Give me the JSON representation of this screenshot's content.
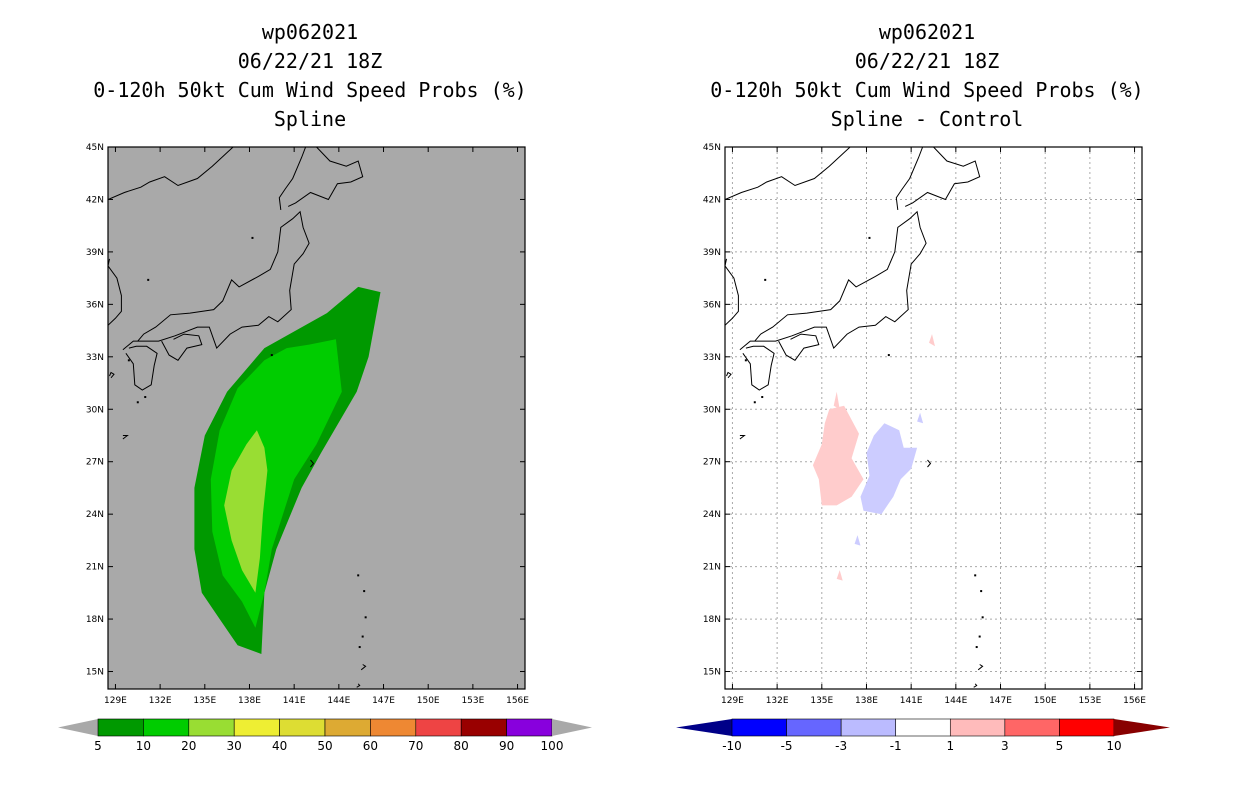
{
  "left_panel": {
    "title_lines": [
      "wp062021",
      "06/22/21 18Z",
      "0-120h 50kt Cum Wind Speed Probs (%)",
      "Spline"
    ]
  },
  "right_panel": {
    "title_lines": [
      "wp062021",
      "06/22/21 18Z",
      "0-120h 50kt Cum Wind Speed Probs (%)",
      "Spline - Control"
    ]
  },
  "chart_data": [
    {
      "type": "heatmap",
      "title": "0-120h 50kt Cum Wind Speed Probs (%) Spline",
      "storm_id": "wp062021",
      "time": "06/22/21 18Z",
      "x_ticks": [
        "129E",
        "132E",
        "135E",
        "138E",
        "141E",
        "144E",
        "147E",
        "150E",
        "153E",
        "156E"
      ],
      "y_ticks": [
        "45N",
        "42N",
        "39N",
        "36N",
        "33N",
        "30N",
        "27N",
        "24N",
        "21N",
        "18N",
        "15N"
      ],
      "xlim": [
        128.5,
        156.5
      ],
      "ylim": [
        14,
        45
      ],
      "grid": false,
      "background_color": "#a9a9a9",
      "colorbar": {
        "levels": [
          "5",
          "10",
          "20",
          "30",
          "40",
          "50",
          "60",
          "70",
          "80",
          "90",
          "100"
        ],
        "colors": [
          "#009900",
          "#00cc00",
          "#99dd33",
          "#eeee33",
          "#dddd33",
          "#ddaa33",
          "#ee8833",
          "#ee4444",
          "#990000",
          "#8800dd"
        ],
        "under_color": "#a9a9a9",
        "over_color": "#a9a9a9"
      },
      "contours": [
        {
          "level": "5-10",
          "color": "#009900",
          "polygon_lonlat": [
            [
              143.2,
              35.5
            ],
            [
              145.3,
              37.0
            ],
            [
              146.8,
              36.7
            ],
            [
              146.0,
              33.0
            ],
            [
              145.2,
              31.0
            ],
            [
              142.8,
              27.5
            ],
            [
              141.5,
              25.5
            ],
            [
              139.8,
              22.0
            ],
            [
              139.0,
              19.5
            ],
            [
              138.8,
              16.0
            ],
            [
              137.2,
              16.5
            ],
            [
              136.0,
              18.0
            ],
            [
              134.8,
              19.5
            ],
            [
              134.3,
              22.0
            ],
            [
              134.3,
              25.5
            ],
            [
              135.0,
              28.5
            ],
            [
              136.5,
              31.0
            ],
            [
              139.0,
              33.5
            ]
          ]
        },
        {
          "level": "10-20",
          "color": "#00cc00",
          "polygon_lonlat": [
            [
              140.5,
              33.5
            ],
            [
              142.0,
              33.7
            ],
            [
              143.8,
              34.0
            ],
            [
              144.2,
              31.0
            ],
            [
              142.5,
              28.0
            ],
            [
              141.0,
              26.0
            ],
            [
              139.5,
              22.0
            ],
            [
              139.0,
              19.5
            ],
            [
              138.4,
              17.5
            ],
            [
              137.5,
              19.0
            ],
            [
              136.2,
              20.5
            ],
            [
              135.5,
              23.0
            ],
            [
              135.4,
              26.0
            ],
            [
              136.0,
              28.8
            ],
            [
              137.2,
              31.2
            ],
            [
              139.0,
              32.8
            ]
          ]
        },
        {
          "level": "20-30",
          "color": "#99dd33",
          "polygon_lonlat": [
            [
              138.5,
              28.8
            ],
            [
              139.0,
              27.8
            ],
            [
              139.2,
              26.5
            ],
            [
              138.9,
              24.0
            ],
            [
              138.7,
              21.5
            ],
            [
              138.4,
              19.5
            ],
            [
              137.5,
              20.8
            ],
            [
              136.8,
              22.5
            ],
            [
              136.3,
              24.5
            ],
            [
              136.8,
              26.5
            ],
            [
              137.8,
              28.0
            ]
          ]
        }
      ]
    },
    {
      "type": "heatmap",
      "title": "0-120h 50kt Cum Wind Speed Probs (%) Spline - Control",
      "storm_id": "wp062021",
      "time": "06/22/21 18Z",
      "x_ticks": [
        "129E",
        "132E",
        "135E",
        "138E",
        "141E",
        "144E",
        "147E",
        "150E",
        "153E",
        "156E"
      ],
      "y_ticks": [
        "45N",
        "42N",
        "39N",
        "36N",
        "33N",
        "30N",
        "27N",
        "24N",
        "21N",
        "18N",
        "15N"
      ],
      "xlim": [
        128.5,
        156.5
      ],
      "ylim": [
        14,
        45
      ],
      "grid": true,
      "background_color": "#ffffff",
      "colorbar": {
        "levels": [
          "-10",
          "-5",
          "-3",
          "-1",
          "1",
          "3",
          "5",
          "10"
        ],
        "colors": [
          "#0000ff",
          "#6666ff",
          "#bbbbff",
          "#ffffff",
          "#ffbbbb",
          "#ff6666",
          "#ff0000"
        ],
        "under_color": "#000088",
        "over_color": "#880000"
      },
      "contours": [
        {
          "level": "1 to 3",
          "color": "#ffcccc",
          "polygon_lonlat": [
            [
              135.5,
              30.0
            ],
            [
              136.5,
              30.2
            ],
            [
              137.5,
              28.6
            ],
            [
              137.0,
              27.2
            ],
            [
              137.8,
              26.0
            ],
            [
              137.0,
              25.0
            ],
            [
              136.0,
              24.5
            ],
            [
              135.0,
              24.5
            ],
            [
              134.8,
              26.0
            ],
            [
              134.4,
              26.8
            ],
            [
              135.0,
              28.0
            ],
            [
              135.2,
              29.2
            ]
          ]
        },
        {
          "level": "-3 to -1",
          "color": "#ccccff",
          "polygon_lonlat": [
            [
              139.2,
              29.2
            ],
            [
              140.2,
              28.8
            ],
            [
              140.5,
              27.8
            ],
            [
              141.4,
              27.8
            ],
            [
              141.0,
              26.6
            ],
            [
              140.3,
              26.0
            ],
            [
              139.8,
              25.0
            ],
            [
              139.0,
              24.0
            ],
            [
              137.8,
              24.2
            ],
            [
              137.6,
              25.0
            ],
            [
              138.2,
              26.2
            ],
            [
              138.0,
              27.5
            ],
            [
              138.5,
              28.5
            ]
          ]
        },
        {
          "level": "1 to 3",
          "color": "#ffcccc",
          "polygon_lonlat": [
            [
              136.0,
              31.0
            ],
            [
              136.2,
              30.0
            ],
            [
              135.8,
              30.2
            ]
          ]
        },
        {
          "level": "1 to 3",
          "color": "#ffcccc",
          "polygon_lonlat": [
            [
              142.4,
              34.3
            ],
            [
              142.6,
              33.6
            ],
            [
              142.2,
              33.8
            ]
          ]
        },
        {
          "level": "1 to 3",
          "color": "#ffcccc",
          "polygon_lonlat": [
            [
              136.2,
              20.8
            ],
            [
              136.4,
              20.2
            ],
            [
              136.0,
              20.3
            ]
          ]
        },
        {
          "level": "-3 to -1",
          "color": "#ccccff",
          "polygon_lonlat": [
            [
              141.6,
              29.8
            ],
            [
              141.8,
              29.2
            ],
            [
              141.4,
              29.3
            ]
          ]
        },
        {
          "level": "-3 to -1",
          "color": "#ccccff",
          "polygon_lonlat": [
            [
              137.4,
              22.8
            ],
            [
              137.6,
              22.2
            ],
            [
              137.2,
              22.3
            ]
          ]
        }
      ]
    }
  ]
}
